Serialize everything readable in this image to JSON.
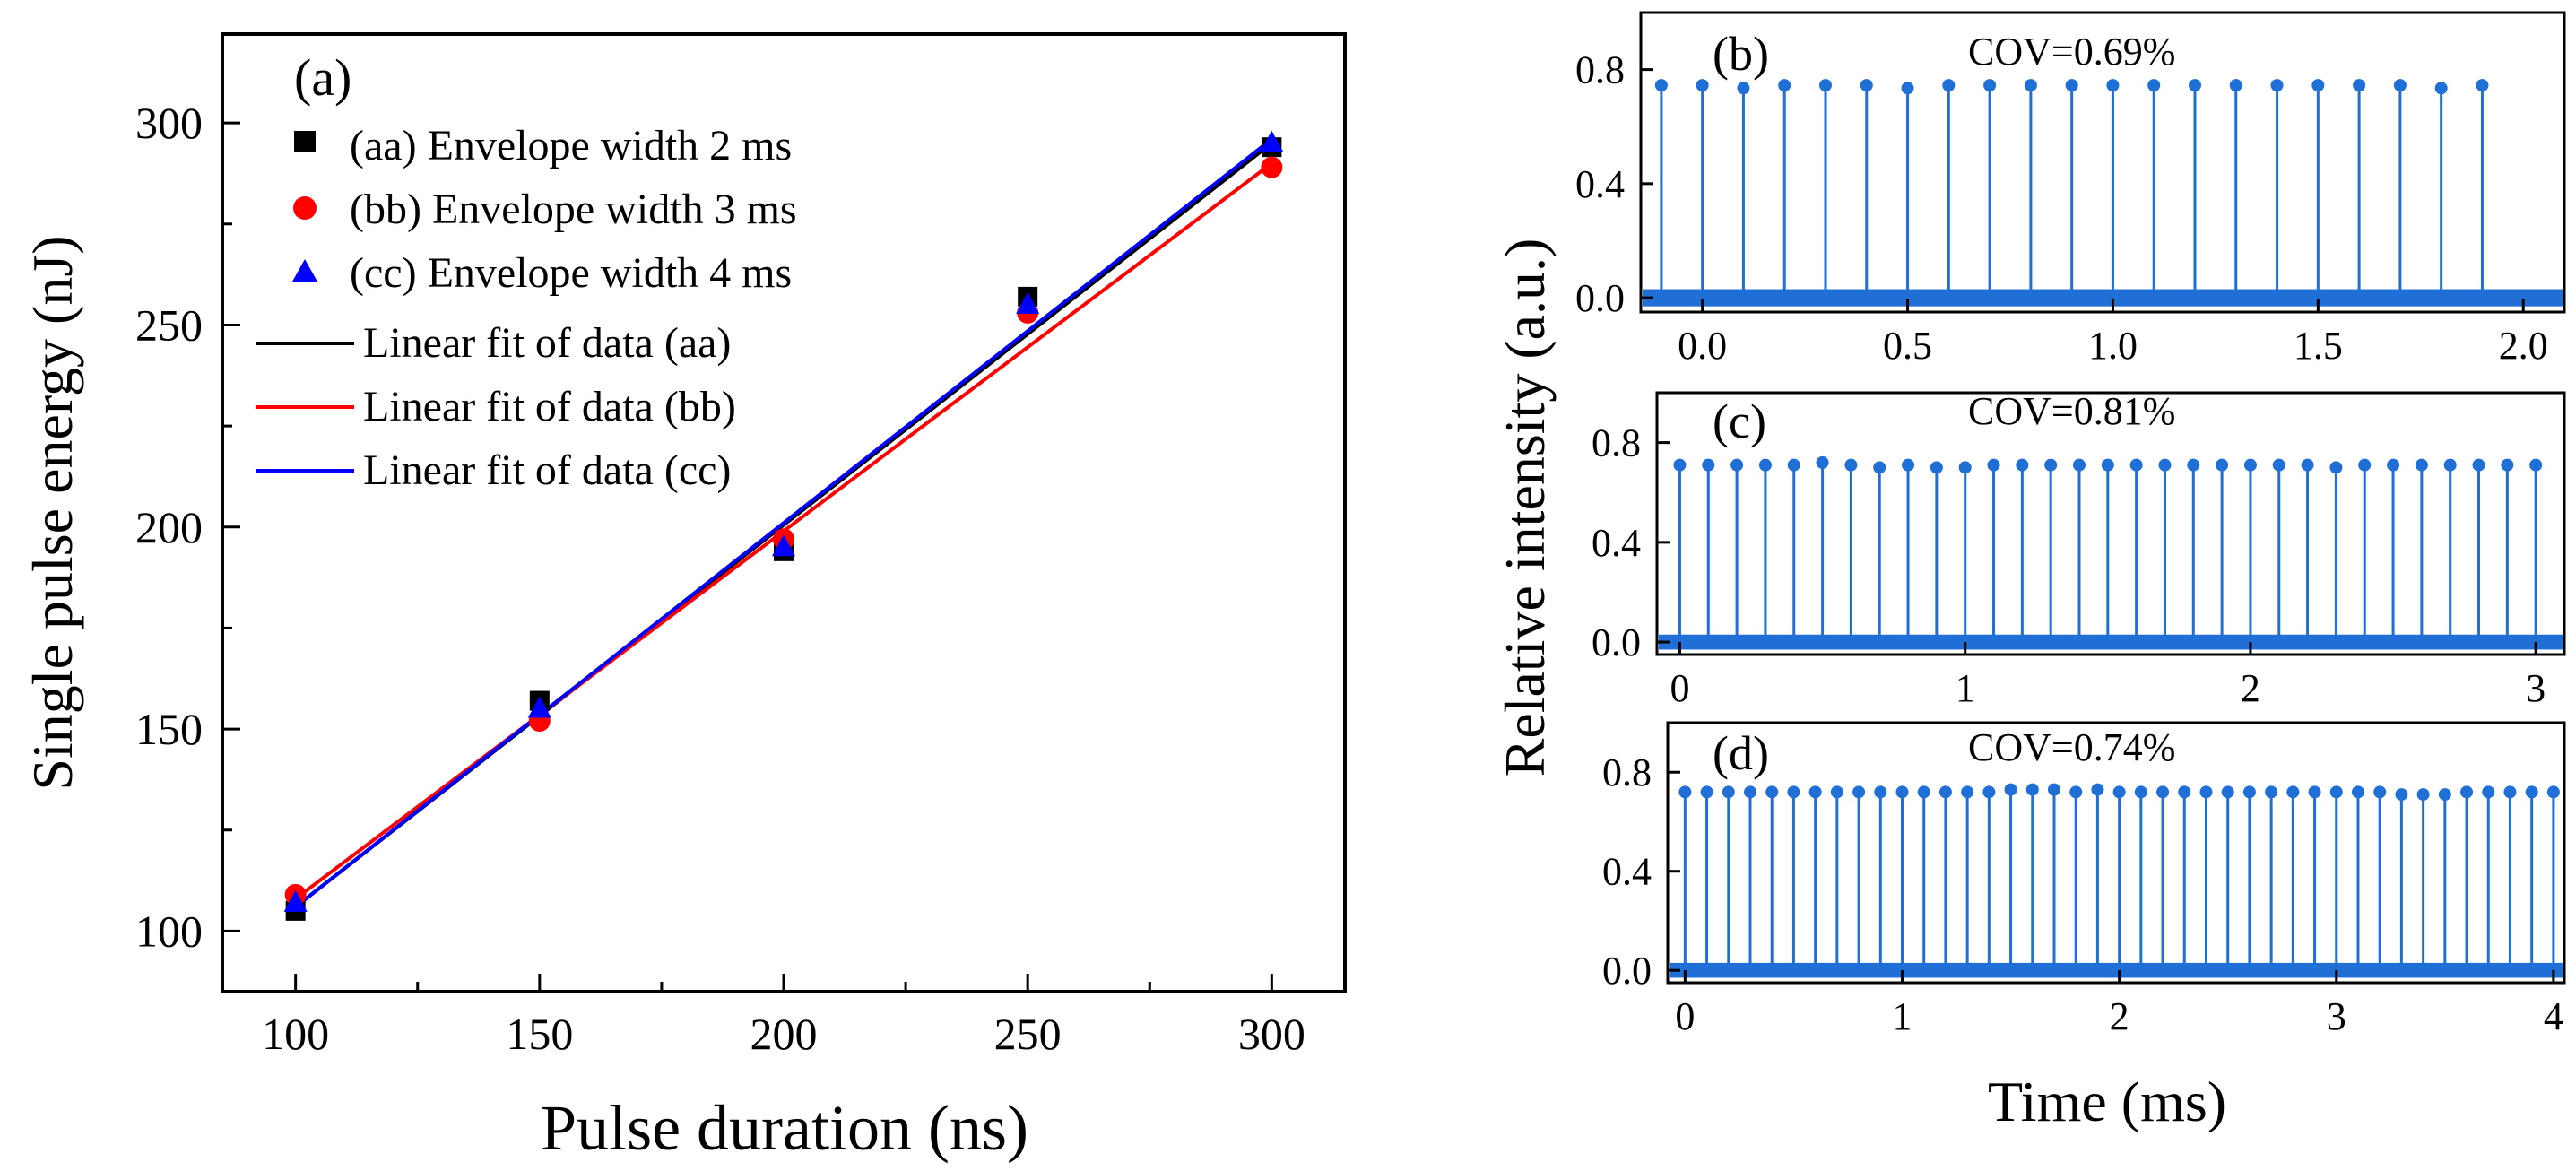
{
  "chart_data": [
    {
      "panel": "(a)",
      "type": "scatter",
      "xlabel": "Pulse duration (ns)",
      "ylabel": "Single pulse energy (nJ)",
      "xlim": [
        85,
        315
      ],
      "ylim": [
        85,
        322
      ],
      "xticks": [
        100,
        150,
        200,
        250,
        300
      ],
      "yticks": [
        100,
        150,
        200,
        250,
        300
      ],
      "series": [
        {
          "name": "(aa) Envelope width 2 ms",
          "marker": "square",
          "color": "#000000",
          "x": [
            100,
            150,
            200,
            250,
            300
          ],
          "values": [
            105,
            157,
            194,
            257,
            294
          ]
        },
        {
          "name": "(bb) Envelope width 3 ms",
          "marker": "circle",
          "color": "#ff0000",
          "x": [
            100,
            150,
            200,
            250,
            300
          ],
          "values": [
            109,
            152,
            197,
            253,
            289
          ]
        },
        {
          "name": "(cc) Envelope width 4 ms",
          "marker": "triangle",
          "color": "#0000ff",
          "x": [
            100,
            150,
            200,
            250,
            300
          ],
          "values": [
            107,
            155,
            195,
            255,
            295
          ]
        }
      ],
      "fits": [
        {
          "name": "Linear fit of data (aa)",
          "color": "#000000",
          "x": [
            100,
            300
          ],
          "values": [
            106,
            295
          ]
        },
        {
          "name": "Linear fit of data (bb)",
          "color": "#ff0000",
          "x": [
            100,
            300
          ],
          "values": [
            108,
            290
          ]
        },
        {
          "name": "Linear fit of data (cc)",
          "color": "#0000ff",
          "x": [
            100,
            300
          ],
          "values": [
            106,
            296
          ]
        }
      ]
    },
    {
      "panel": "(b)",
      "type": "line",
      "annotation": "COV=0.69%",
      "xlim": [
        -0.15,
        2.1
      ],
      "ylim": [
        -0.05,
        1.0
      ],
      "xticks": [
        0.0,
        0.5,
        1.0,
        1.5,
        2.0
      ],
      "xticklabels": [
        "0.0",
        "0.5",
        "1.0",
        "1.5",
        "2.0"
      ],
      "yticks": [
        0.0,
        0.4,
        0.8
      ],
      "yticklabels": [
        "0.0",
        "0.4",
        "0.8"
      ],
      "color": "#1f6fd6",
      "peak_start": -0.1,
      "peak_spacing": 0.1,
      "peaks": [
        0.745,
        0.745,
        0.735,
        0.745,
        0.745,
        0.745,
        0.735,
        0.745,
        0.745,
        0.745,
        0.745,
        0.745,
        0.745,
        0.745,
        0.745,
        0.745,
        0.745,
        0.745,
        0.745,
        0.735,
        0.745
      ]
    },
    {
      "panel": "(c)",
      "type": "line",
      "annotation": "COV=0.81%",
      "xlim": [
        -0.08,
        3.1
      ],
      "ylim": [
        -0.05,
        1.0
      ],
      "xticks": [
        0,
        1,
        2,
        3
      ],
      "xticklabels": [
        "0",
        "1",
        "2",
        "3"
      ],
      "yticks": [
        0.0,
        0.4,
        0.8
      ],
      "yticklabels": [
        "0.0",
        "0.4",
        "0.8"
      ],
      "color": "#1f6fd6",
      "peak_start": 0.0,
      "peak_spacing": 0.1,
      "peaks": [
        0.71,
        0.71,
        0.71,
        0.71,
        0.71,
        0.72,
        0.71,
        0.7,
        0.71,
        0.7,
        0.7,
        0.71,
        0.71,
        0.71,
        0.71,
        0.71,
        0.71,
        0.71,
        0.71,
        0.71,
        0.71,
        0.71,
        0.71,
        0.7,
        0.71,
        0.71,
        0.71,
        0.71,
        0.71,
        0.71,
        0.71
      ]
    },
    {
      "panel": "(d)",
      "type": "line",
      "annotation": "COV=0.74%",
      "xlim": [
        -0.08,
        4.05
      ],
      "ylim": [
        -0.05,
        1.0
      ],
      "xticks": [
        0,
        1,
        2,
        3,
        4
      ],
      "xticklabels": [
        "0",
        "1",
        "2",
        "3",
        "4"
      ],
      "yticks": [
        0.0,
        0.4,
        0.8
      ],
      "yticklabels": [
        "0.0",
        "0.4",
        "0.8"
      ],
      "color": "#1f6fd6",
      "peak_start": 0.0,
      "peak_spacing": 0.1,
      "peaks": [
        0.72,
        0.72,
        0.72,
        0.72,
        0.72,
        0.72,
        0.72,
        0.72,
        0.72,
        0.72,
        0.72,
        0.72,
        0.72,
        0.72,
        0.72,
        0.73,
        0.73,
        0.73,
        0.72,
        0.73,
        0.72,
        0.72,
        0.72,
        0.72,
        0.72,
        0.72,
        0.72,
        0.72,
        0.72,
        0.72,
        0.72,
        0.72,
        0.72,
        0.71,
        0.71,
        0.71,
        0.72,
        0.72,
        0.72,
        0.72,
        0.72
      ]
    }
  ],
  "right_shared": {
    "ylabel": "Relative intensity (a.u.)",
    "xlabel": "Time (ms)"
  }
}
